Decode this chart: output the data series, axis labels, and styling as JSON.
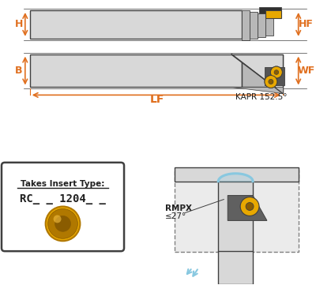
{
  "bg_color": "#ffffff",
  "light_gray": "#d8d8d8",
  "mid_gray": "#b8b8b8",
  "dark_gray": "#404040",
  "insert_color": "#e8a800",
  "insert_dark": "#b07800",
  "insert_hole": "#8a5c00",
  "blue_color": "#88c8e0",
  "dim_color": "#e07020",
  "text_color": "#202020",
  "label_H": "H",
  "label_HF": "HF",
  "label_B": "B",
  "label_WF": "WF",
  "label_LF": "LF",
  "label_KAPR": "KAPR 152.5°",
  "label_RMPX": "RMPX",
  "label_angle": "≤27°",
  "insert_text": "Takes Insert Type:",
  "insert_code": "RC_ _ 1204_ _"
}
